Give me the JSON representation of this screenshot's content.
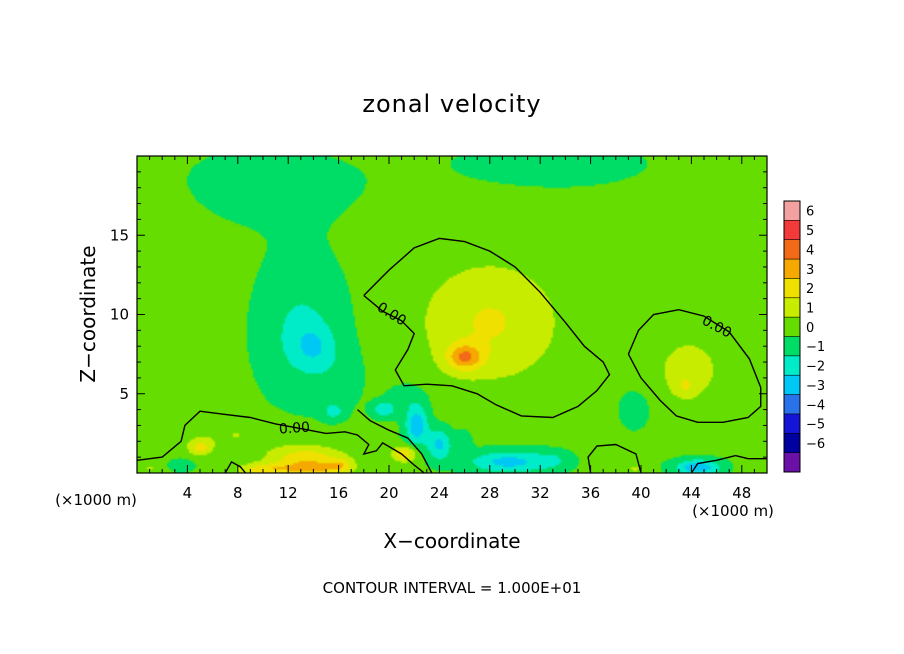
{
  "chart_data": {
    "type": "heatmap",
    "title": "zonal velocity",
    "xlabel": "X−coordinate",
    "ylabel": "Z−coordinate",
    "x_unit_left": "(×1000 m)",
    "x_unit_right": "(×1000 m)",
    "footer": "CONTOUR INTERVAL = 1.000E+01",
    "xlim": [
      0,
      50
    ],
    "ylim": [
      0,
      20
    ],
    "x_ticks": [
      4,
      8,
      12,
      16,
      20,
      24,
      28,
      32,
      36,
      40,
      44,
      48
    ],
    "x_tick_labels": [
      "4",
      "8",
      "12",
      "16",
      "20",
      "24",
      "28",
      "32",
      "36",
      "40",
      "44",
      "48"
    ],
    "y_ticks": [
      5,
      10,
      15
    ],
    "y_tick_labels": [
      "5",
      "10",
      "15"
    ],
    "colorbar": {
      "levels": [
        6,
        5,
        4,
        3,
        2,
        1,
        0,
        -1,
        -2,
        -3,
        -4,
        -5,
        -6
      ],
      "labels": [
        "6",
        "5",
        "4",
        "3",
        "2",
        "1",
        "0",
        "−1",
        "−2",
        "−3",
        "−4",
        "−5",
        "−6"
      ],
      "colors": [
        "#f2a0a0",
        "#f23a3a",
        "#f26a18",
        "#f4a800",
        "#f0e000",
        "#c8ec00",
        "#66dd00",
        "#00dd66",
        "#00ecc8",
        "#00c8f4",
        "#2a72ea",
        "#1414d6",
        "#0000a0",
        "#6a10a6"
      ]
    },
    "contours": [
      {
        "level": 0.0,
        "label": "0.00",
        "points": [
          [
            18.0,
            11.2
          ],
          [
            20.0,
            12.8
          ],
          [
            22.0,
            14.2
          ],
          [
            24.0,
            14.8
          ],
          [
            26.0,
            14.6
          ],
          [
            28.0,
            14.0
          ],
          [
            30.0,
            13.0
          ],
          [
            32.0,
            11.4
          ],
          [
            34.0,
            9.5
          ],
          [
            35.5,
            8.0
          ],
          [
            37.0,
            7.0
          ],
          [
            37.5,
            6.2
          ],
          [
            36.5,
            5.2
          ],
          [
            35.0,
            4.2
          ],
          [
            33.0,
            3.5
          ],
          [
            30.5,
            3.6
          ],
          [
            28.5,
            4.3
          ],
          [
            27.0,
            5.0
          ],
          [
            25.0,
            5.5
          ],
          [
            23.0,
            5.6
          ],
          [
            21.2,
            5.5
          ],
          [
            20.5,
            6.5
          ],
          [
            21.5,
            7.8
          ],
          [
            22.0,
            8.8
          ],
          [
            21.0,
            9.6
          ],
          [
            19.5,
            10.2
          ],
          [
            18.0,
            11.2
          ]
        ]
      },
      {
        "level": 0.0,
        "label": "0.00",
        "points": [
          [
            39.0,
            7.5
          ],
          [
            39.8,
            9.0
          ],
          [
            41.0,
            10.0
          ],
          [
            43.0,
            10.3
          ],
          [
            45.0,
            9.9
          ],
          [
            47.0,
            8.9
          ],
          [
            48.6,
            7.2
          ],
          [
            49.5,
            5.4
          ],
          [
            49.5,
            4.2
          ],
          [
            48.5,
            3.5
          ],
          [
            46.5,
            3.2
          ],
          [
            44.5,
            3.2
          ],
          [
            42.8,
            3.6
          ],
          [
            41.5,
            4.6
          ],
          [
            40.0,
            6.0
          ],
          [
            39.0,
            7.5
          ]
        ]
      },
      {
        "level": 0.0,
        "label": "0.00",
        "points": [
          [
            0.0,
            0.8
          ],
          [
            2.0,
            1.0
          ],
          [
            3.5,
            2.0
          ],
          [
            3.8,
            3.0
          ],
          [
            5.0,
            3.9
          ],
          [
            7.0,
            3.7
          ],
          [
            9.0,
            3.5
          ],
          [
            11.0,
            3.1
          ],
          [
            13.0,
            2.8
          ],
          [
            15.0,
            2.5
          ],
          [
            16.5,
            2.6
          ],
          [
            17.5,
            2.4
          ],
          [
            18.4,
            1.8
          ],
          [
            18.0,
            1.2
          ],
          [
            19.0,
            1.4
          ],
          [
            19.5,
            1.9
          ],
          [
            21.0,
            1.2
          ],
          [
            22.0,
            0.5
          ],
          [
            22.8,
            0.0
          ]
        ]
      },
      {
        "level": 0.0,
        "label": "",
        "points": [
          [
            17.5,
            4.0
          ],
          [
            18.5,
            3.3
          ],
          [
            20.0,
            2.7
          ],
          [
            21.5,
            2.2
          ],
          [
            22.6,
            1.2
          ],
          [
            23.4,
            0.0
          ]
        ]
      },
      {
        "level": 0.0,
        "label": "",
        "points": [
          [
            36.0,
            0.0
          ],
          [
            35.8,
            1.0
          ],
          [
            36.5,
            1.7
          ],
          [
            38.0,
            1.8
          ],
          [
            39.6,
            1.2
          ],
          [
            40.0,
            0.0
          ]
        ]
      },
      {
        "level": 0.0,
        "label": "",
        "points": [
          [
            44.0,
            0.0
          ],
          [
            44.5,
            0.6
          ],
          [
            46.0,
            0.8
          ],
          [
            47.5,
            1.1
          ],
          [
            48.5,
            0.9
          ],
          [
            50.0,
            0.9
          ]
        ]
      },
      {
        "level": 0.0,
        "label": "",
        "points": [
          [
            7.0,
            0.0
          ],
          [
            7.5,
            0.7
          ],
          [
            8.2,
            0.4
          ],
          [
            8.6,
            0.0
          ]
        ]
      }
    ],
    "field": {
      "background": 0.2,
      "features": [
        {
          "x": 0.0,
          "z": 10.0,
          "sx": 5.0,
          "sz": 6.0,
          "v": 0.7
        },
        {
          "x": 10.0,
          "z": 18.0,
          "sx": 9.0,
          "sz": 3.0,
          "v": -0.4
        },
        {
          "x": 33.0,
          "z": 19.5,
          "sx": 10.0,
          "sz": 2.0,
          "v": -0.35
        },
        {
          "x": 13.0,
          "z": 9.0,
          "sx": 3.2,
          "sz": 4.0,
          "v": -1.4
        },
        {
          "x": 14.0,
          "z": 8.0,
          "sx": 1.6,
          "sz": 1.3,
          "v": -1.3
        },
        {
          "x": 16.0,
          "z": 6.0,
          "sx": 2.0,
          "sz": 2.0,
          "v": -0.5
        },
        {
          "x": 28.0,
          "z": 9.5,
          "sx": 5.5,
          "sz": 3.8,
          "v": 1.9
        },
        {
          "x": 26.0,
          "z": 7.3,
          "sx": 1.4,
          "sz": 0.8,
          "v": 3.0
        },
        {
          "x": 43.8,
          "z": 6.5,
          "sx": 3.0,
          "sz": 2.4,
          "v": 1.2
        },
        {
          "x": 43.5,
          "z": 5.5,
          "sx": 0.8,
          "sz": 0.6,
          "v": 1.0
        },
        {
          "x": 39.5,
          "z": 4.0,
          "sx": 1.0,
          "sz": 1.0,
          "v": -1.2
        },
        {
          "x": 8.0,
          "z": 2.4,
          "sx": 4.0,
          "sz": 1.0,
          "v": 0.8
        },
        {
          "x": 5.0,
          "z": 1.6,
          "sx": 0.9,
          "sz": 0.5,
          "v": 2.0
        },
        {
          "x": 13.5,
          "z": 0.9,
          "sx": 3.0,
          "sz": 0.8,
          "v": 2.5
        },
        {
          "x": 14.0,
          "z": 0.25,
          "sx": 2.5,
          "sz": 0.4,
          "v": 2.2
        },
        {
          "x": 10.0,
          "z": 0.2,
          "sx": 2.0,
          "sz": 0.4,
          "v": 2.2
        },
        {
          "x": 16.2,
          "z": 0.5,
          "sx": 0.9,
          "sz": 0.4,
          "v": 1.5
        },
        {
          "x": 21.2,
          "z": 1.2,
          "sx": 1.0,
          "sz": 0.5,
          "v": 2.5
        },
        {
          "x": 22.2,
          "z": 3.0,
          "sx": 0.9,
          "sz": 1.2,
          "v": -3.0
        },
        {
          "x": 24.0,
          "z": 1.8,
          "sx": 1.0,
          "sz": 1.0,
          "v": -2.4
        },
        {
          "x": 19.6,
          "z": 4.0,
          "sx": 0.9,
          "sz": 0.5,
          "v": -2.0
        },
        {
          "x": 21.5,
          "z": 4.8,
          "sx": 1.6,
          "sz": 0.9,
          "v": -0.8
        },
        {
          "x": 15.6,
          "z": 3.9,
          "sx": 0.8,
          "sz": 0.5,
          "v": -1.5
        },
        {
          "x": 29.5,
          "z": 0.7,
          "sx": 3.2,
          "sz": 0.7,
          "v": -2.6
        },
        {
          "x": 26.0,
          "z": 2.0,
          "sx": 0.6,
          "sz": 0.8,
          "v": -0.7
        },
        {
          "x": 33.0,
          "z": 0.8,
          "sx": 1.4,
          "sz": 0.6,
          "v": -0.9
        },
        {
          "x": 44.5,
          "z": 0.35,
          "sx": 1.8,
          "sz": 0.5,
          "v": -3.0
        },
        {
          "x": 39.5,
          "z": 0.3,
          "sx": 1.0,
          "sz": 0.4,
          "v": 0.9
        },
        {
          "x": 48.5,
          "z": 0.3,
          "sx": 0.8,
          "sz": 0.4,
          "v": 0.6
        },
        {
          "x": 1.0,
          "z": 0.3,
          "sx": 1.0,
          "sz": 0.4,
          "v": 0.8
        },
        {
          "x": 3.5,
          "z": 0.5,
          "sx": 1.0,
          "sz": 0.4,
          "v": -1.0
        }
      ]
    }
  }
}
